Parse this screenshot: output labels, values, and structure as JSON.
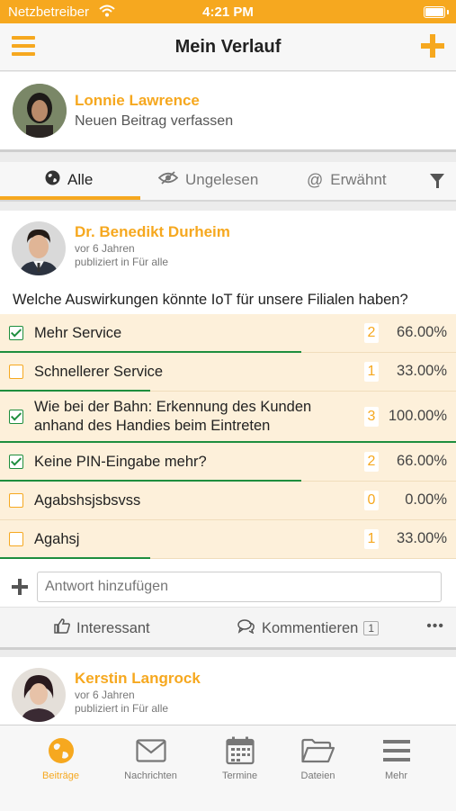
{
  "status_bar": {
    "carrier": "Netzbetreiber",
    "time": "4:21 PM"
  },
  "nav": {
    "title": "Mein Verlauf",
    "menu_icon": "hamburger-menu-icon",
    "add_icon": "plus-icon"
  },
  "composer": {
    "user_name": "Lonnie Lawrence",
    "prompt": "Neuen Beitrag verfassen"
  },
  "filters": [
    {
      "label": "Alle",
      "icon": "globe-icon",
      "active": true
    },
    {
      "label": "Ungelesen",
      "icon": "eye-slash-icon",
      "active": false
    },
    {
      "label": "Erwähnt",
      "icon": "at-icon",
      "active": false
    }
  ],
  "post": {
    "author": "Dr. Benedikt Durheim",
    "age": "vor 6 Jahren",
    "published_in": "publiziert in Für alle",
    "question": "Welche Auswirkungen könnte IoT für unsere Filialen haben?",
    "options": [
      {
        "label": "Mehr Service",
        "count": "2",
        "percent": "66.00%",
        "share": 0.66,
        "checked": true
      },
      {
        "label": "Schnellerer Service",
        "count": "1",
        "percent": "33.00%",
        "share": 0.33,
        "checked": false
      },
      {
        "label": "Wie bei der Bahn: Erkennung des Kunden anhand des Handies beim Eintreten",
        "count": "3",
        "percent": "100.00%",
        "share": 1.0,
        "checked": true
      },
      {
        "label": "Keine PIN-Eingabe mehr?",
        "count": "2",
        "percent": "66.00%",
        "share": 0.66,
        "checked": true
      },
      {
        "label": "Agabshsjsbsvss",
        "count": "0",
        "percent": "0.00%",
        "share": 0.0,
        "checked": false
      },
      {
        "label": "Agahsj",
        "count": "1",
        "percent": "33.00%",
        "share": 0.33,
        "checked": false
      }
    ],
    "answer_placeholder": "Antwort hinzufügen",
    "actions": {
      "like": "Interessant",
      "comment": "Kommentieren",
      "comment_count": "1"
    }
  },
  "post2": {
    "author": "Kerstin Langrock",
    "age": "vor 6 Jahren",
    "published_in": "publiziert in Für alle"
  },
  "tabbar": [
    {
      "label": "Beiträge",
      "icon": "globe-icon",
      "active": true
    },
    {
      "label": "Nachrichten",
      "icon": "envelope-icon",
      "active": false
    },
    {
      "label": "Termine",
      "icon": "calendar-icon",
      "active": false
    },
    {
      "label": "Dateien",
      "icon": "folder-icon",
      "active": false
    },
    {
      "label": "Mehr",
      "icon": "menu-icon",
      "active": false
    }
  ],
  "colors": {
    "accent": "#f6a81f",
    "vote_bar": "#1e8e3e",
    "option_bg": "#fdf0da"
  }
}
